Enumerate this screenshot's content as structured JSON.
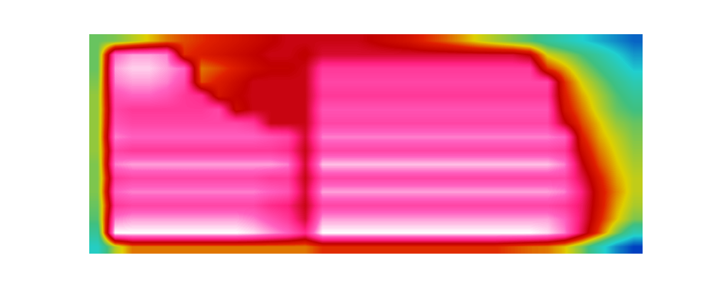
{
  "chart_data": {
    "type": "heatmap",
    "tick_labels": false,
    "cells": [
      [
        38,
        40,
        45,
        50,
        55,
        58,
        60,
        62,
        64,
        66,
        68,
        70,
        70,
        70,
        70,
        70,
        68,
        66,
        64,
        60,
        57,
        53,
        48,
        44,
        40,
        36,
        30,
        25,
        20,
        15,
        10,
        5
      ],
      [
        38,
        88,
        92,
        92,
        90,
        60,
        62,
        64,
        66,
        68,
        70,
        70,
        68,
        72,
        72,
        72,
        72,
        72,
        72,
        72,
        72,
        72,
        72,
        72,
        72,
        68,
        48,
        42,
        35,
        28,
        20,
        12
      ],
      [
        38,
        92,
        95,
        95,
        92,
        88,
        55,
        58,
        62,
        66,
        68,
        68,
        70,
        82,
        82,
        82,
        82,
        82,
        82,
        82,
        82,
        82,
        82,
        82,
        82,
        82,
        60,
        52,
        42,
        34,
        26,
        18
      ],
      [
        40,
        90,
        92,
        92,
        90,
        85,
        58,
        62,
        66,
        70,
        70,
        70,
        70,
        84,
        84,
        84,
        84,
        84,
        84,
        84,
        84,
        84,
        84,
        84,
        84,
        84,
        84,
        60,
        48,
        40,
        32,
        25
      ],
      [
        42,
        86,
        88,
        88,
        86,
        82,
        80,
        64,
        68,
        70,
        70,
        70,
        70,
        82,
        82,
        82,
        82,
        82,
        82,
        82,
        82,
        82,
        82,
        82,
        82,
        82,
        82,
        62,
        52,
        44,
        36,
        30
      ],
      [
        42,
        84,
        82,
        82,
        82,
        82,
        82,
        84,
        66,
        70,
        70,
        70,
        70,
        86,
        86,
        86,
        86,
        86,
        86,
        86,
        86,
        86,
        86,
        86,
        86,
        86,
        86,
        64,
        55,
        46,
        38,
        34
      ],
      [
        42,
        86,
        84,
        84,
        84,
        84,
        84,
        84,
        84,
        82,
        70,
        70,
        70,
        84,
        84,
        84,
        84,
        84,
        84,
        84,
        84,
        84,
        84,
        84,
        84,
        84,
        84,
        70,
        58,
        50,
        42,
        38
      ],
      [
        42,
        90,
        88,
        88,
        88,
        88,
        88,
        88,
        88,
        88,
        86,
        84,
        72,
        90,
        90,
        90,
        90,
        90,
        90,
        90,
        90,
        90,
        90,
        90,
        90,
        90,
        90,
        88,
        62,
        52,
        46,
        40
      ],
      [
        42,
        84,
        82,
        82,
        82,
        82,
        82,
        82,
        82,
        82,
        82,
        80,
        70,
        84,
        84,
        84,
        84,
        84,
        84,
        84,
        84,
        84,
        84,
        84,
        84,
        84,
        84,
        82,
        66,
        55,
        48,
        42
      ],
      [
        40,
        90,
        92,
        92,
        92,
        92,
        92,
        92,
        92,
        92,
        92,
        90,
        72,
        94,
        94,
        94,
        94,
        94,
        94,
        94,
        94,
        94,
        94,
        94,
        94,
        94,
        94,
        90,
        70,
        58,
        50,
        44
      ],
      [
        40,
        82,
        84,
        84,
        84,
        84,
        84,
        84,
        84,
        84,
        82,
        82,
        70,
        84,
        84,
        84,
        84,
        84,
        84,
        84,
        84,
        84,
        84,
        84,
        84,
        84,
        84,
        84,
        74,
        62,
        52,
        46
      ],
      [
        40,
        88,
        90,
        90,
        90,
        90,
        90,
        90,
        90,
        90,
        88,
        86,
        72,
        92,
        92,
        92,
        92,
        92,
        92,
        92,
        92,
        92,
        92,
        92,
        92,
        92,
        92,
        90,
        78,
        64,
        54,
        46
      ],
      [
        38,
        82,
        84,
        84,
        84,
        84,
        84,
        84,
        84,
        84,
        80,
        78,
        70,
        84,
        84,
        84,
        84,
        84,
        84,
        84,
        84,
        84,
        84,
        84,
        84,
        84,
        84,
        82,
        76,
        64,
        52,
        44
      ],
      [
        36,
        90,
        92,
        92,
        92,
        92,
        92,
        92,
        92,
        90,
        86,
        82,
        72,
        92,
        92,
        92,
        92,
        92,
        92,
        92,
        92,
        92,
        92,
        92,
        92,
        92,
        92,
        88,
        76,
        62,
        50,
        40
      ],
      [
        30,
        98,
        98,
        98,
        98,
        98,
        98,
        98,
        98,
        96,
        92,
        88,
        80,
        98,
        98,
        98,
        98,
        98,
        98,
        98,
        98,
        98,
        98,
        98,
        98,
        98,
        96,
        90,
        74,
        58,
        40,
        25
      ],
      [
        22,
        45,
        55,
        55,
        55,
        55,
        55,
        55,
        55,
        55,
        55,
        55,
        55,
        60,
        60,
        60,
        60,
        60,
        60,
        60,
        60,
        60,
        60,
        60,
        58,
        56,
        55,
        50,
        40,
        25,
        10,
        0
      ]
    ]
  }
}
